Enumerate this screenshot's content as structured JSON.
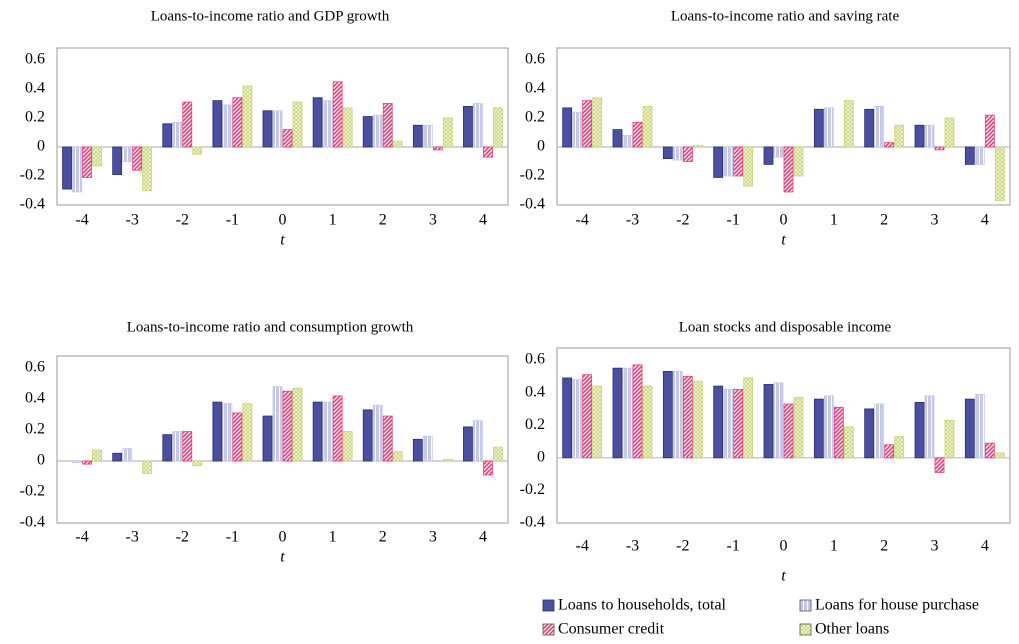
{
  "chart_data": [
    {
      "type": "bar",
      "title": "Loans-to-income ratio and GDP growth",
      "xlabel": "t",
      "categories": [
        "-4",
        "-3",
        "-2",
        "-1",
        "0",
        "1",
        "2",
        "3",
        "4"
      ],
      "ylim": [
        -0.4,
        0.6
      ],
      "yticks": [
        -0.4,
        -0.2,
        0,
        0.2,
        0.4,
        0.6
      ],
      "grid": false,
      "series": [
        {
          "color": "#4a4f9e",
          "values": [
            -0.29,
            -0.19,
            0.16,
            0.32,
            0.25,
            0.34,
            0.21,
            0.15,
            0.28
          ]
        },
        {
          "color": "#c5c9e8",
          "values": [
            -0.31,
            -0.1,
            0.17,
            0.29,
            0.25,
            0.32,
            0.22,
            0.15,
            0.3
          ]
        },
        {
          "color": "#e0407a",
          "values": [
            -0.21,
            -0.16,
            0.31,
            0.34,
            0.12,
            0.45,
            0.3,
            -0.02,
            -0.07
          ]
        },
        {
          "color": "#c9d47a",
          "values": [
            -0.13,
            -0.3,
            -0.05,
            0.42,
            0.31,
            0.27,
            0.04,
            0.2,
            0.27
          ]
        }
      ]
    },
    {
      "type": "bar",
      "title": "Loans-to-income ratio and saving rate",
      "xlabel": "t",
      "categories": [
        "-4",
        "-3",
        "-2",
        "-1",
        "0",
        "1",
        "2",
        "3",
        "4"
      ],
      "ylim": [
        -0.4,
        0.6
      ],
      "yticks": [
        -0.4,
        -0.2,
        0,
        0.2,
        0.4,
        0.6
      ],
      "grid": false,
      "series": [
        {
          "color": "#4a4f9e",
          "values": [
            0.27,
            0.12,
            -0.08,
            -0.21,
            -0.12,
            0.26,
            0.26,
            0.15,
            -0.12
          ]
        },
        {
          "color": "#c5c9e8",
          "values": [
            0.24,
            0.08,
            -0.09,
            -0.2,
            -0.07,
            0.27,
            0.28,
            0.15,
            -0.12
          ]
        },
        {
          "color": "#e0407a",
          "values": [
            0.32,
            0.17,
            -0.1,
            -0.2,
            -0.31,
            0.0,
            0.03,
            -0.02,
            0.22
          ]
        },
        {
          "color": "#c9d47a",
          "values": [
            0.34,
            0.28,
            0.01,
            -0.27,
            -0.2,
            0.32,
            0.15,
            0.2,
            -0.37
          ]
        }
      ]
    },
    {
      "type": "bar",
      "title": "Loans-to-income ratio and consumption growth",
      "xlabel": "t",
      "categories": [
        "-4",
        "-3",
        "-2",
        "-1",
        "0",
        "1",
        "2",
        "3",
        "4"
      ],
      "ylim": [
        -0.4,
        0.6
      ],
      "yticks": [
        -0.4,
        -0.2,
        0,
        0.2,
        0.4,
        0.6
      ],
      "grid": false,
      "series": [
        {
          "color": "#4a4f9e",
          "values": [
            0.0,
            0.05,
            0.17,
            0.38,
            0.29,
            0.38,
            0.33,
            0.14,
            0.22
          ]
        },
        {
          "color": "#c5c9e8",
          "values": [
            -0.01,
            0.08,
            0.19,
            0.37,
            0.48,
            0.38,
            0.36,
            0.16,
            0.26
          ]
        },
        {
          "color": "#e0407a",
          "values": [
            -0.02,
            0.0,
            0.19,
            0.31,
            0.45,
            0.42,
            0.29,
            0.0,
            -0.09
          ]
        },
        {
          "color": "#c9d47a",
          "values": [
            0.07,
            -0.08,
            -0.03,
            0.37,
            0.47,
            0.19,
            0.06,
            0.01,
            0.09
          ]
        }
      ]
    },
    {
      "type": "bar",
      "title": "Loan stocks and disposable income",
      "xlabel": "t",
      "categories": [
        "-4",
        "-3",
        "-2",
        "-1",
        "0",
        "1",
        "2",
        "3",
        "4"
      ],
      "ylim": [
        -0.4,
        0.6
      ],
      "yticks": [
        -0.4,
        -0.2,
        0,
        0.2,
        0.4,
        0.6
      ],
      "grid": false,
      "series": [
        {
          "name": "Loans to households, total",
          "color": "#4a4f9e",
          "values": [
            0.49,
            0.55,
            0.53,
            0.44,
            0.45,
            0.36,
            0.3,
            0.34,
            0.36
          ]
        },
        {
          "name": "Loans for house purchase",
          "color": "#c5c9e8",
          "values": [
            0.48,
            0.55,
            0.53,
            0.42,
            0.46,
            0.38,
            0.33,
            0.38,
            0.39
          ]
        },
        {
          "name": "Consumer credit",
          "color": "#e0407a",
          "values": [
            0.51,
            0.57,
            0.5,
            0.42,
            0.33,
            0.31,
            0.08,
            -0.09,
            0.09
          ]
        },
        {
          "name": "Other loans",
          "color": "#c9d47a",
          "values": [
            0.44,
            0.44,
            0.47,
            0.49,
            0.37,
            0.19,
            0.13,
            0.23,
            0.03
          ]
        }
      ]
    }
  ]
}
